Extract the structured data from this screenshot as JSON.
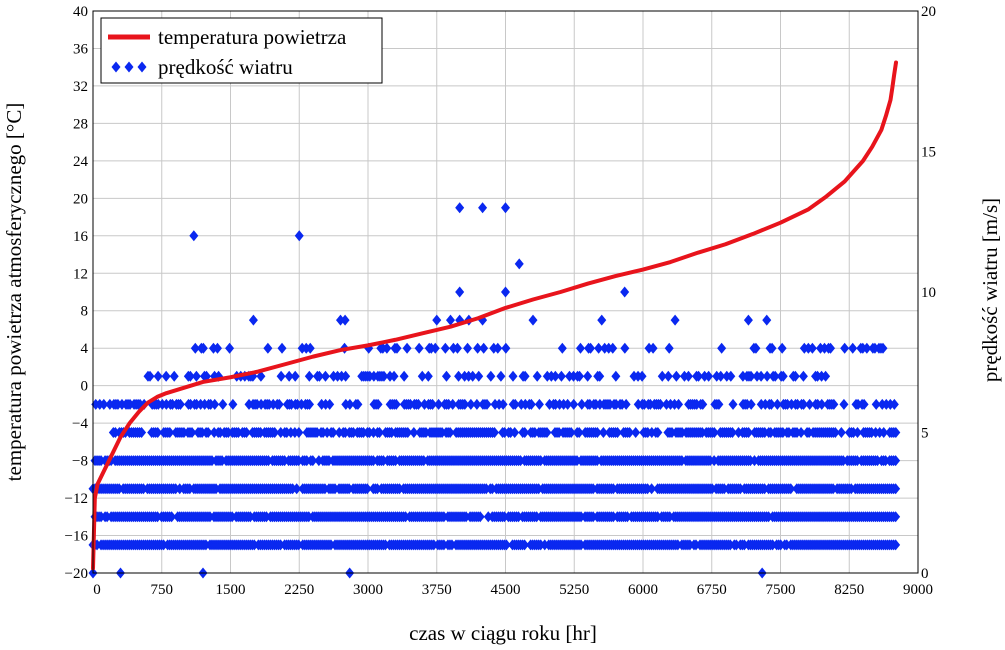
{
  "chart_data": {
    "type": "line",
    "xlabel": "czas w ciągu roku [hr]",
    "ylabel": "temperatura powietrza atmosferycznego [°C]",
    "y2label": "prędkość wiatru [m/s]",
    "xlim": [
      0,
      9000
    ],
    "ylim": [
      -20,
      40
    ],
    "y2lim": [
      0,
      20
    ],
    "xticks": [
      "0",
      "750",
      "1500",
      "2250",
      "3000",
      "3750",
      "4500",
      "5250",
      "6000",
      "6750",
      "7500",
      "8250",
      "9000"
    ],
    "yticks": [
      "−20",
      "−16",
      "−12",
      "−8",
      "−4",
      "0",
      "4",
      "8",
      "12",
      "16",
      "20",
      "24",
      "28",
      "32",
      "36",
      "40"
    ],
    "y2ticks": [
      "0",
      "5",
      "10",
      "15",
      "20"
    ],
    "grid": true,
    "legend_position": "top-left",
    "series": [
      {
        "name": "temperatura powietrza",
        "axis": "left",
        "color": "#e8141c",
        "x": [
          0,
          20,
          50,
          100,
          150,
          200,
          300,
          400,
          500,
          600,
          700,
          800,
          1000,
          1200,
          1500,
          1800,
          2100,
          2400,
          2700,
          3000,
          3300,
          3600,
          3900,
          4200,
          4500,
          4800,
          5100,
          5400,
          5700,
          6000,
          6300,
          6600,
          6900,
          7200,
          7500,
          7800,
          8000,
          8200,
          8400,
          8500,
          8600,
          8650,
          8700,
          8720,
          8740,
          8760
        ],
        "y": [
          -19.5,
          -12,
          -10.5,
          -9.5,
          -8.5,
          -7.5,
          -5.5,
          -4,
          -2.8,
          -1.8,
          -1.2,
          -0.8,
          -0.2,
          0.4,
          0.9,
          1.5,
          2.3,
          3.1,
          3.8,
          4.3,
          4.9,
          5.6,
          6.3,
          7.2,
          8.3,
          9.2,
          10,
          10.9,
          11.7,
          12.4,
          13.2,
          14.2,
          15.1,
          16.2,
          17.4,
          18.8,
          20.2,
          21.8,
          24,
          25.5,
          27.3,
          28.8,
          30.5,
          31.8,
          33.2,
          34.5
        ]
      },
      {
        "name": "prędkość wiatru",
        "axis": "right",
        "color": "#0a28f0",
        "marker": "diamond",
        "levels": [
          1,
          2,
          3,
          4,
          5,
          6,
          7,
          8,
          9,
          10,
          11,
          12,
          13
        ],
        "level_ranges": [
          [
            [
              0,
              8760
            ]
          ],
          [
            [
              0,
              8760
            ]
          ],
          [
            [
              0,
              8760
            ]
          ],
          [
            [
              0,
              8760
            ]
          ],
          [
            [
              200,
              8760
            ]
          ],
          [
            [
              30,
              8760
            ]
          ],
          [
            [
              600,
              8200
            ]
          ],
          [
            [
              1050,
              8800
            ]
          ],
          [
            [
              1750,
              7450
            ]
          ],
          [
            [
              4000,
              5800
            ]
          ],
          [
            [
              4650,
              4650
            ]
          ],
          [
            [
              1100,
              2250
            ]
          ],
          [
            [
              4000,
              4500
            ]
          ]
        ],
        "outliers": [
          {
            "x": 1100,
            "y": 12
          },
          {
            "x": 2250,
            "y": 12
          },
          {
            "x": 4000,
            "y": 13
          },
          {
            "x": 4250,
            "y": 13
          },
          {
            "x": 4500,
            "y": 13
          },
          {
            "x": 4650,
            "y": 11
          },
          {
            "x": 4000,
            "y": 10
          },
          {
            "x": 4500,
            "y": 10
          },
          {
            "x": 5800,
            "y": 10
          },
          {
            "x": 0,
            "y": 0
          },
          {
            "x": 300,
            "y": 0
          },
          {
            "x": 1200,
            "y": 0
          },
          {
            "x": 2800,
            "y": 0
          },
          {
            "x": 7300,
            "y": 0
          }
        ]
      }
    ]
  }
}
